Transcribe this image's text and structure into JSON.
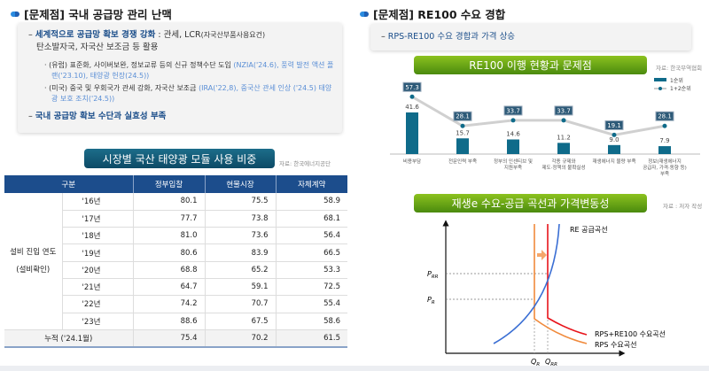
{
  "left": {
    "heading": "[문제점] 국내 공급망 관리 난맥",
    "bullet1_strong": "세계적으로 공급망 확보 경쟁 강화",
    "bullet1_rest": " : 관세, LCR",
    "bullet1_small": "(자국산부품사용요건)",
    "bullet1_line2": "탄소발자국, 자국산 보조금 등 활용",
    "sub1_text": "(유럽) 표준화, 사이버보완, 정보교류 등의 신규 정책수단 도입 ",
    "sub1_link": "(NZIA('24.6), 풍력 발전 액션 플랜('23.10), 태양광 헌장(24.5))",
    "sub2_text": "(미국) 중국 및 우회국가 관세 강화, 자국산 보조금 ",
    "sub2_link": "(IRA('22,8), 중국산 관세 인상 ('24.5) 태양광 보호 조치('24.5))",
    "bullet2": "국내 공급망 확보 수단과 실효성 부족",
    "table_title": "시장별 국산 태양광 모듈 사용 비중",
    "table_source": "자료: 한국에너지공단",
    "table": {
      "headers": [
        "구분",
        "정부입찰",
        "현물시장",
        "자체계약"
      ],
      "group_label": "설비 진입 연도",
      "group_sub": "(설비확인)",
      "rows": [
        {
          "year": "'16년",
          "v": [
            "80.1",
            "75.5",
            "58.9"
          ]
        },
        {
          "year": "'17년",
          "v": [
            "77.7",
            "73.8",
            "68.1"
          ]
        },
        {
          "year": "'18년",
          "v": [
            "81.0",
            "73.6",
            "56.4"
          ]
        },
        {
          "year": "'19년",
          "v": [
            "80.6",
            "83.9",
            "66.5"
          ]
        },
        {
          "year": "'20년",
          "v": [
            "68.8",
            "65.2",
            "53.3"
          ]
        },
        {
          "year": "'21년",
          "v": [
            "64.7",
            "59.1",
            "72.5"
          ]
        },
        {
          "year": "'22년",
          "v": [
            "74.2",
            "70.7",
            "55.4"
          ]
        },
        {
          "year": "'23년",
          "v": [
            "88.6",
            "67.5",
            "58.6"
          ]
        }
      ],
      "total": {
        "label": "누적 ('24.1월)",
        "v": [
          "75.4",
          "70.2",
          "61.5"
        ]
      }
    }
  },
  "right": {
    "heading": "[문제점] RE100 수요 경합",
    "bullet": "RPS-RE100 수요 경합과 가격 상승",
    "chart1_title": "RE100 이행 현황과 문제점",
    "chart1_source": "자료: 한국무역협회",
    "chart2_title": "재생e 수요-공급 곡선과 가격변동성",
    "chart2_source": "자료 : 저자 작성",
    "diagram": {
      "supply_label": "RE 공급곡선",
      "demand_high_label": "RPS+RE100 수요곡선",
      "demand_low_label": "RPS 수요곡선",
      "p_rr": "P",
      "p_rr_sub": "RR",
      "p_r": "P",
      "p_r_sub": "R",
      "q_r": "Q",
      "q_r_sub": "R",
      "q_rr": "Q",
      "q_rr_sub": "RR",
      "colors": {
        "supply": "#3b6fd4",
        "rps": "#f08a3c",
        "rps_re100": "#e8141b"
      }
    }
  },
  "chart_data": {
    "type": "bar",
    "categories": [
      "비용부담",
      "전문인력 부족",
      "정부의 인센티브 및 지원부족",
      "각종 규제와 제도·정책의 불확실성",
      "재생에너지 물량 부족",
      "정보(재생에너지 공급자, 가격·동향 등) 부족"
    ],
    "series": [
      {
        "name": "1순위",
        "type": "bar",
        "values": [
          41.6,
          15.7,
          14.6,
          11.2,
          9.0,
          7.9
        ],
        "color": "#0f6b8a"
      },
      {
        "name": "1+2순위",
        "type": "line",
        "values": [
          57.3,
          28.1,
          33.7,
          33.7,
          19.1,
          28.1
        ],
        "color": "#0f6b8a"
      }
    ],
    "legend": "top-right"
  }
}
